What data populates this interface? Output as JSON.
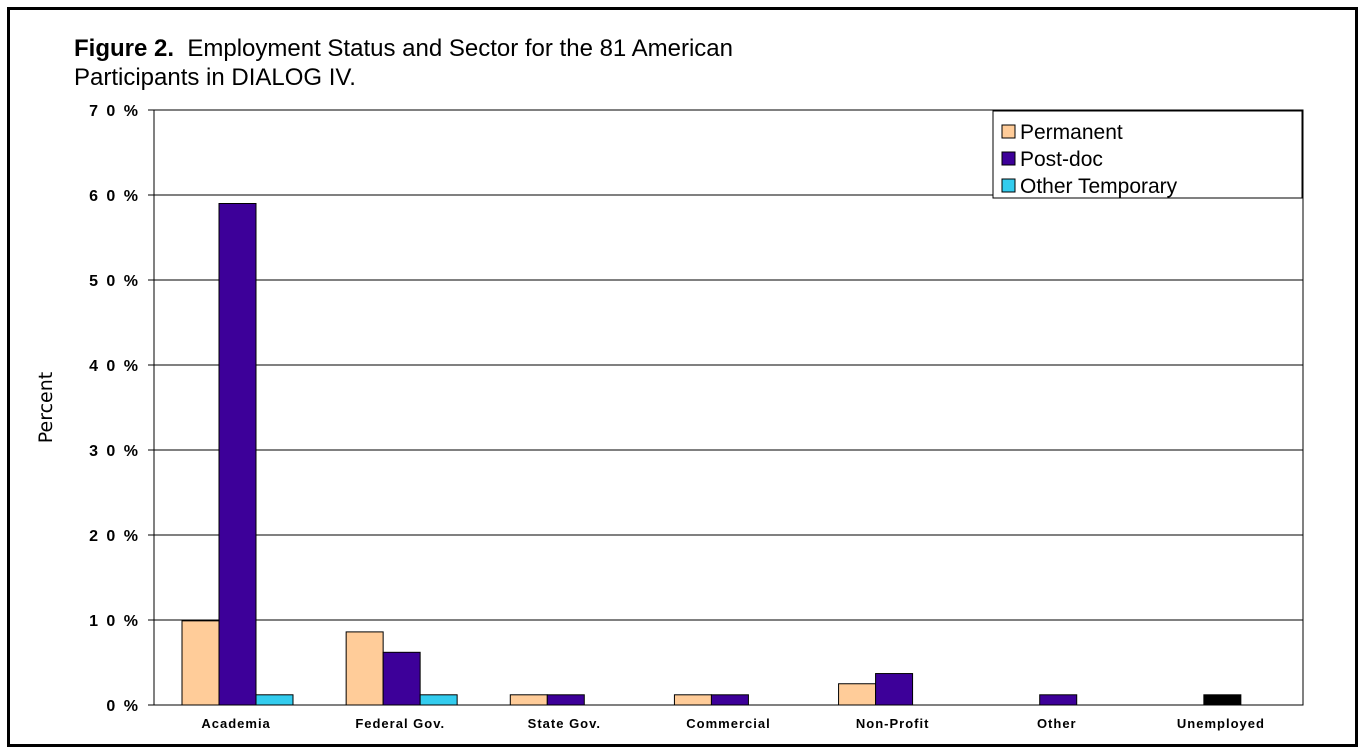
{
  "figure": {
    "label": "Figure 2.",
    "caption_line1": "Employment Status and Sector for the 81 American",
    "caption_line2": "Participants in DIALOG IV."
  },
  "chart_data": {
    "type": "bar",
    "ylabel": "Percent",
    "xlabel": "",
    "ylim": [
      0,
      70
    ],
    "yticks": [
      "0 %",
      "1 0 %",
      "2 0 %",
      "3 0 %",
      "4 0 %",
      "5 0 %",
      "6 0 %",
      "7 0 %"
    ],
    "ytick_values": [
      0,
      10,
      20,
      30,
      40,
      50,
      60,
      70
    ],
    "grid": true,
    "legend_position": "top-right",
    "categories": [
      "Academia",
      "Federal Gov.",
      "State Gov.",
      "Commercial",
      "Non-Profit",
      "Other",
      "Unemployed"
    ],
    "series": [
      {
        "name": "Permanent",
        "color": "#FFCC99",
        "values": [
          9.9,
          8.6,
          1.2,
          1.2,
          2.5,
          0,
          0
        ]
      },
      {
        "name": "Post-doc",
        "color": "#3D0099",
        "values": [
          59.0,
          6.2,
          1.2,
          1.2,
          3.7,
          1.2,
          0
        ]
      },
      {
        "name": "Other Temporary",
        "color": "#33CCEE",
        "values": [
          1.2,
          1.2,
          0,
          0,
          0,
          0,
          0
        ]
      }
    ],
    "extra_bars": [
      {
        "category": "Unemployed",
        "color": "#000000",
        "value": 1.2
      }
    ]
  }
}
